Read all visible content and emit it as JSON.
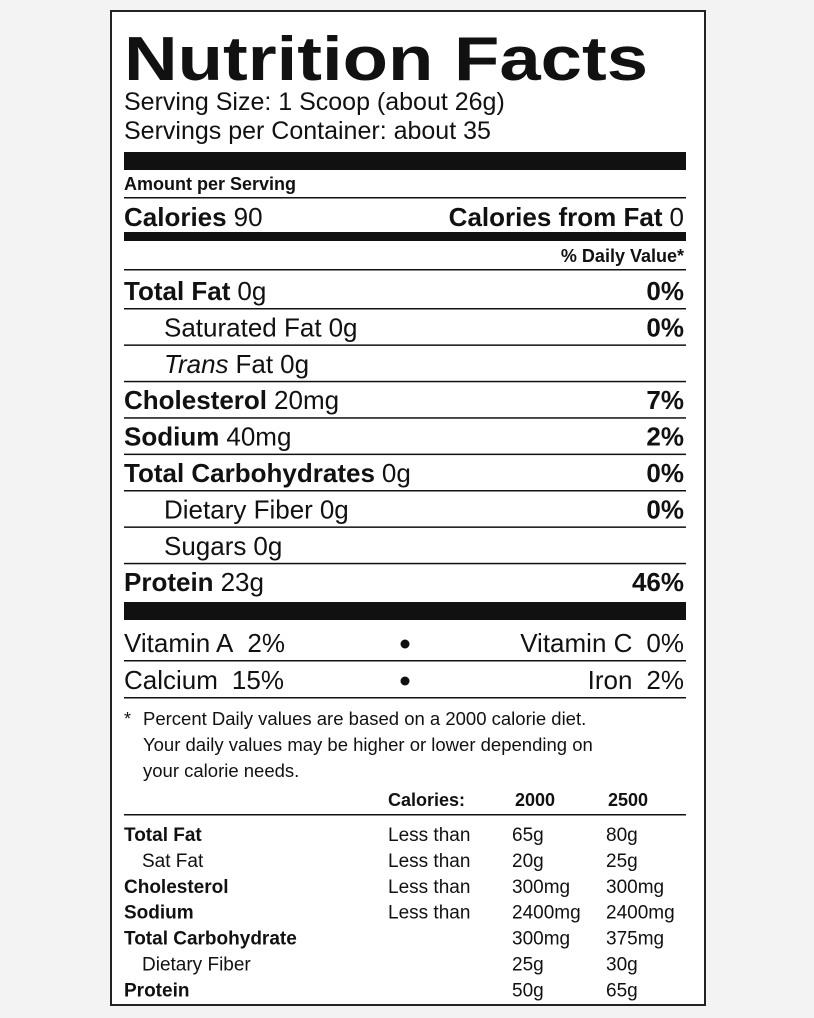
{
  "title": "Nutrition Facts",
  "serving_size": "Serving Size: 1 Scoop (about 26g)",
  "servings_per_container": "Servings per Container: about 35",
  "amount_per_serving": "Amount per Serving",
  "calories": {
    "label": "Calories",
    "value": "90"
  },
  "calories_from_fat": {
    "label": "Calories from Fat",
    "value": "0"
  },
  "daily_value_header": "% Daily Value*",
  "nutrients": [
    {
      "name": "Total Fat",
      "amount": "0g",
      "dv": "0%",
      "indent": false
    },
    {
      "name": "Saturated Fat",
      "amount": "0g",
      "dv": "0%",
      "indent": true
    },
    {
      "name_italic": "Trans",
      "name": "Fat",
      "amount": "0g",
      "indent": true
    },
    {
      "name": "Cholesterol",
      "amount": "20mg",
      "dv": "7%",
      "indent": false
    },
    {
      "name": "Sodium",
      "amount": "40mg",
      "dv": "2%",
      "indent": false
    },
    {
      "name": "Total Carbohydrates",
      "amount": "0g",
      "dv": "0%",
      "indent": false
    },
    {
      "name": "Dietary Fiber",
      "amount": "0g",
      "dv": "0%",
      "indent": true
    },
    {
      "name": "Sugars",
      "amount": "0g",
      "indent": true
    },
    {
      "name": "Protein",
      "amount": "23g",
      "dv": "46%",
      "indent": false
    }
  ],
  "vitamins": [
    {
      "left": {
        "name": "Vitamin A",
        "value": "2%"
      },
      "right": {
        "name": "Vitamin C",
        "value": "0%"
      }
    },
    {
      "left": {
        "name": "Calcium",
        "value": "15%"
      },
      "right": {
        "name": "Iron",
        "value": "2%"
      }
    }
  ],
  "footnote": {
    "marker": "*",
    "lines": [
      "Percent Daily values are based on a 2000 calorie diet.",
      "Your daily values may be higher or lower depending on",
      "your calorie needs."
    ]
  },
  "reference_table": {
    "header": {
      "calories": "Calories:",
      "c2000": "2000",
      "c2500": "2500"
    },
    "rows": [
      {
        "name": "Total Fat",
        "qualifier": "Less than",
        "c2000": "65g",
        "c2500": "80g",
        "indent": false
      },
      {
        "name": "Sat Fat",
        "qualifier": "Less than",
        "c2000": "20g",
        "c2500": "25g",
        "indent": true
      },
      {
        "name": "Cholesterol",
        "qualifier": "Less than",
        "c2000": "300mg",
        "c2500": "300mg",
        "indent": false
      },
      {
        "name": "Sodium",
        "qualifier": "Less than",
        "c2000": "2400mg",
        "c2500": "2400mg",
        "indent": false
      },
      {
        "name": "Total Carbohydrate",
        "c2000": "300mg",
        "c2500": "375mg",
        "indent": false
      },
      {
        "name": "Dietary Fiber",
        "c2000": "25g",
        "c2500": "30g",
        "indent": true
      },
      {
        "name": "Protein",
        "c2000": "50g",
        "c2500": "65g",
        "indent": false
      }
    ]
  }
}
